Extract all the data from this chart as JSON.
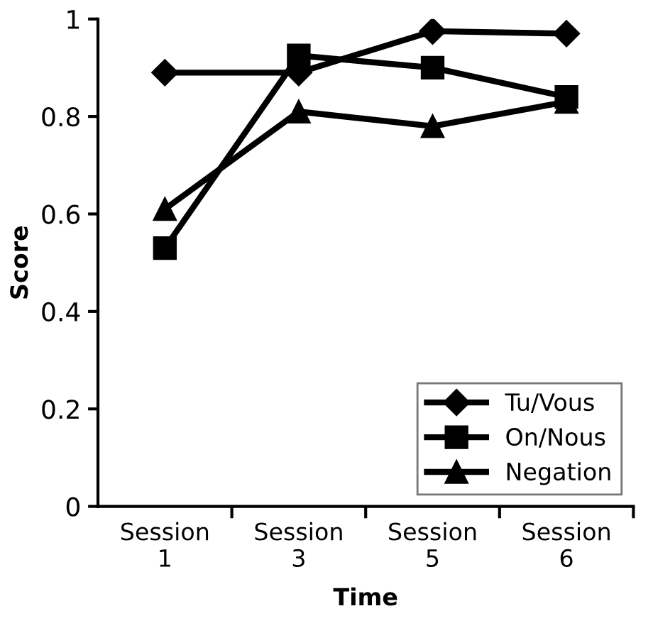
{
  "chart_data": {
    "type": "line",
    "xlabel": "Time",
    "ylabel": "Score",
    "categories": [
      "Session\n1",
      "Session\n3",
      "Session\n5",
      "Session\n6"
    ],
    "series": [
      {
        "name": "Tu/Vous",
        "color": "#000000",
        "marker": "diamond",
        "values": [
          0.89,
          0.89,
          0.975,
          0.97
        ]
      },
      {
        "name": "On/Nous",
        "color": "#000000",
        "marker": "square",
        "values": [
          0.53,
          0.925,
          0.9,
          0.84
        ]
      },
      {
        "name": "Negation",
        "color": "#000000",
        "marker": "triangle",
        "values": [
          0.61,
          0.81,
          0.78,
          0.83
        ]
      }
    ],
    "ylim": [
      0,
      1
    ],
    "yticks": [
      0,
      0.2,
      0.4,
      0.6,
      0.8,
      1
    ],
    "grid": false,
    "legend": "bottom right",
    "line_style": "solid"
  }
}
